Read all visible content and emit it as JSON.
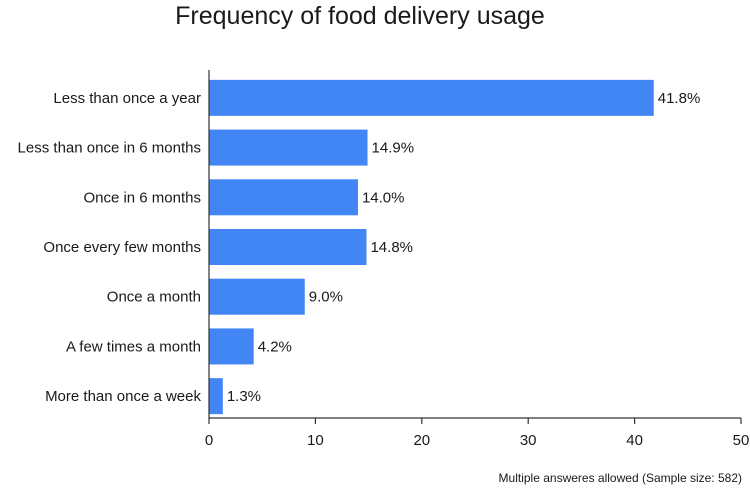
{
  "chart_data": {
    "type": "bar",
    "orientation": "horizontal",
    "title": "Frequency of food delivery usage",
    "categories": [
      "Less than once a year",
      "Less than once in 6 months",
      "Once in 6 months",
      "Once every few months",
      "Once a month",
      "A few times a month",
      "More than once a week"
    ],
    "values": [
      41.8,
      14.9,
      14.0,
      14.8,
      9.0,
      4.2,
      1.3
    ],
    "value_labels": [
      "41.8%",
      "14.9%",
      "14.0%",
      "14.8%",
      "9.0%",
      "4.2%",
      "1.3%"
    ],
    "xlim": [
      0,
      50
    ],
    "xticks": [
      0,
      10,
      20,
      30,
      40,
      50
    ],
    "bar_color": "#4285f4",
    "grid": false,
    "legend": "none"
  },
  "footnote": "Multiple answeres allowed (Sample size: 582)"
}
